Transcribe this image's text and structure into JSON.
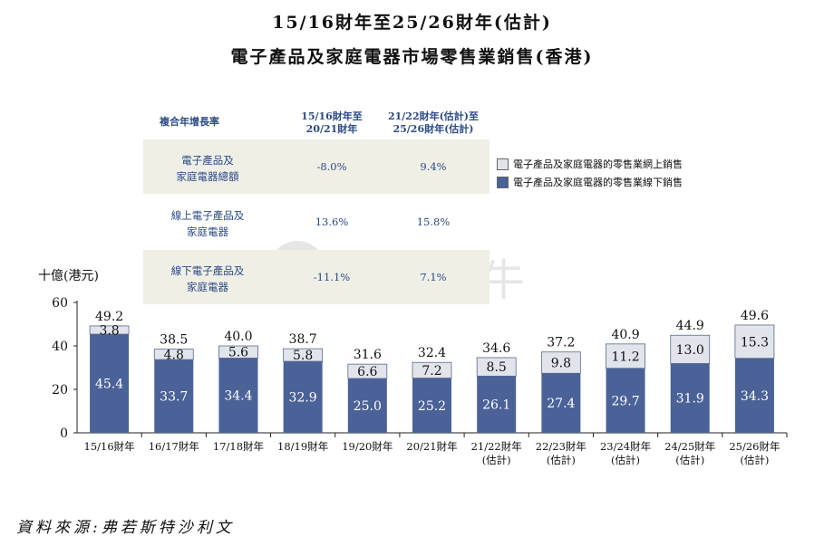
{
  "title_line1": "15/16財年至25/26財年(估計)",
  "title_line2": "電子產品及家庭電器市場零售業銷售(香港)",
  "cagr_table": {
    "headers": [
      "複合年增長率",
      "15/16財年至\n20/21財年",
      "21/22財年(估計)至\n25/26財年(估計)"
    ],
    "rows": [
      {
        "label": "電子產品及\n家庭電器總額",
        "v1": "-8.0%",
        "v2": "9.4%"
      },
      {
        "label": "線上電子產品及\n家庭電器",
        "v1": "13.6%",
        "v2": "15.8%"
      },
      {
        "label": "線下電子產品及\n家庭電器",
        "v1": "-11.1%",
        "v2": "7.1%"
      }
    ]
  },
  "watermark": "富途牛牛",
  "source": "資料來源:弗若斯特沙利文",
  "colors": {
    "offline": "#4a6298",
    "online": "#e2e4ec",
    "text_blue": "#2b4a86"
  },
  "chart_data": {
    "type": "bar",
    "stacked": true,
    "ylabel": "十億(港元)",
    "ylim": [
      0,
      60
    ],
    "yticks": [
      "0",
      "20",
      "40",
      "60"
    ],
    "categories": [
      "15/16財年",
      "16/17財年",
      "17/18財年",
      "18/19財年",
      "19/20財年",
      "20/21財年",
      "21/22財年\n(估計)",
      "22/23財年\n(估計)",
      "23/24財年\n(估計)",
      "24/25財年\n(估計)",
      "25/26財年\n(估計)"
    ],
    "series": [
      {
        "name": "電子產品及家庭電器的零售業線下銷售",
        "values": [
          45.4,
          33.7,
          34.4,
          32.9,
          25.0,
          25.2,
          26.1,
          27.4,
          29.7,
          31.9,
          34.3
        ]
      },
      {
        "name": "電子產品及家庭電器的零售業網上銷售",
        "values": [
          3.8,
          4.8,
          5.6,
          5.8,
          6.6,
          7.2,
          8.5,
          9.8,
          11.2,
          13.0,
          15.3
        ]
      }
    ],
    "totals": [
      49.2,
      38.5,
      40.0,
      38.7,
      31.6,
      32.4,
      34.6,
      37.2,
      40.9,
      44.9,
      49.6
    ],
    "labels_offline": [
      "45.4",
      "33.7",
      "34.4",
      "32.9",
      "25.0",
      "25.2",
      "26.1",
      "27.4",
      "29.7",
      "31.9",
      "34.3"
    ],
    "labels_online": [
      "3.8",
      "4.8",
      "5.6",
      "5.8",
      "6.6",
      "7.2",
      "8.5",
      "9.8",
      "11.2",
      "13.0",
      "15.3"
    ],
    "labels_total": [
      "49.2",
      "38.5",
      "40.0",
      "38.7",
      "31.6",
      "32.4",
      "34.6",
      "37.2",
      "40.9",
      "44.9",
      "49.6"
    ],
    "legend": [
      "電子產品及家庭電器的零售業網上銷售",
      "電子產品及家庭電器的零售業線下銷售"
    ],
    "legend_position": "right",
    "grid": false
  }
}
